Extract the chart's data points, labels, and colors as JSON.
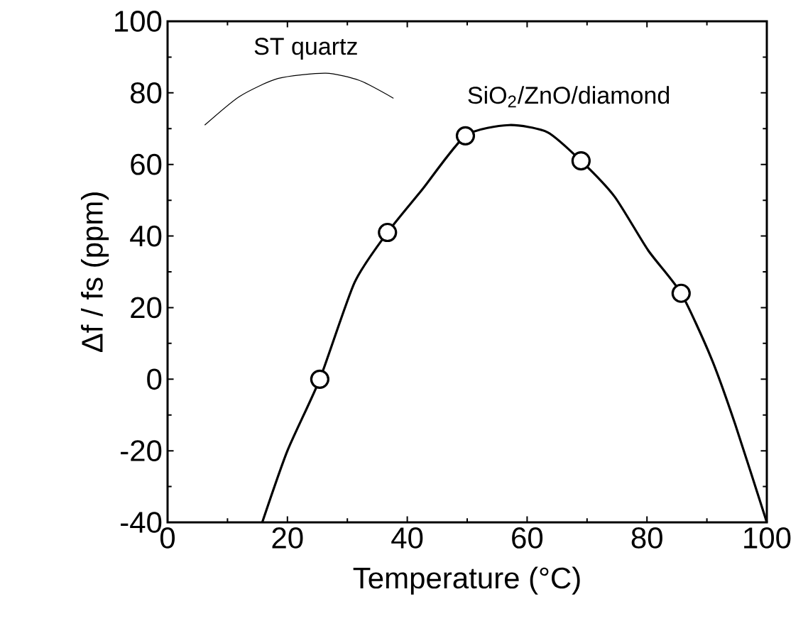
{
  "chart_data": {
    "type": "line",
    "xlabel": "Temperature (°C)",
    "ylabel": "Δf / fs (ppm)",
    "xlim": [
      0,
      100
    ],
    "ylim": [
      -40,
      100
    ],
    "xticks": [
      0,
      20,
      40,
      60,
      80,
      100
    ],
    "yticks": [
      -40,
      -20,
      0,
      20,
      40,
      60,
      80,
      100
    ],
    "grid": false,
    "series": [
      {
        "name": "ST quartz",
        "color": "#000000",
        "line_style": "solid",
        "x": [
          6.2,
          12,
          18.4,
          26.4,
          32,
          37.7
        ],
        "values": [
          71,
          79,
          84,
          85.5,
          83.5,
          78.5
        ]
      },
      {
        "name": "SiO$_{2}$/ZnO/diamond",
        "color": "#000000",
        "line_style": "solid",
        "x": [
          15.8,
          20,
          25.4,
          31.2,
          36.7,
          42.5,
          49.7,
          57,
          63.4,
          69,
          74.6,
          80.2,
          85.7,
          90.7,
          94.7,
          100
        ],
        "values": [
          -40,
          -20,
          0,
          27,
          41,
          53,
          68,
          71,
          69,
          61,
          51,
          36,
          24,
          6,
          -12.5,
          -40
        ]
      },
      {
        "type": "scatter",
        "color": "#000000",
        "marker": "circle",
        "x": [
          25.4,
          36.7,
          49.7,
          69,
          85.7
        ],
        "values": [
          0,
          41,
          68,
          61,
          24
        ]
      }
    ]
  }
}
